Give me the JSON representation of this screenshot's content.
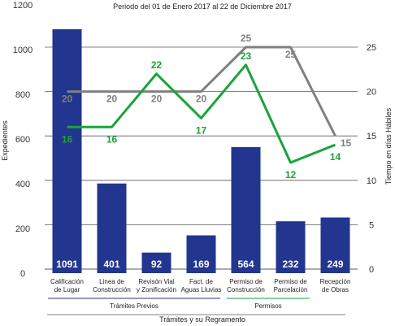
{
  "chart_data": {
    "type": "bar",
    "title": "Periodo del 01 de Enero 2017 al 22 de Diciembre 2017",
    "xlabel": "Trámites y su Regramento",
    "ylabel": "Expedientes",
    "y2label": "Tiempo en días Hábiles",
    "ylim": [
      0,
      1200
    ],
    "y2lim": [
      0,
      27.5
    ],
    "yticks": [
      0,
      200,
      400,
      600,
      800,
      1000,
      1200
    ],
    "y2ticks": [
      0,
      5,
      10,
      15,
      20,
      25
    ],
    "grid": true,
    "categories": [
      [
        "Calificación",
        "de Lugar"
      ],
      [
        "Linea de",
        "Construcción"
      ],
      [
        "Revisón Vial",
        "y Zonificación"
      ],
      [
        "Fact. de",
        "Aguas Lluvias"
      ],
      [
        "Permiso de",
        "Construcción"
      ],
      [
        "Permiso de",
        "Parcelación"
      ],
      [
        "Recepción",
        "de Obras"
      ]
    ],
    "series": [
      {
        "values": [
          1091,
          401,
          92,
          169,
          564,
          232,
          249
        ],
        "axis": "left",
        "kind": "bar",
        "color": "#22358f"
      },
      {
        "values": [
          20,
          20,
          20,
          20,
          25,
          25,
          15
        ],
        "axis": "right",
        "kind": "line",
        "color": "#808080"
      },
      {
        "values": [
          16,
          16,
          22,
          17,
          23,
          12,
          14
        ],
        "axis": "right",
        "kind": "line",
        "color": "#1aa33a"
      }
    ],
    "groups": [
      {
        "label": "Trámites Previos",
        "from": 0,
        "to": 3,
        "color": "#22358f"
      },
      {
        "label": "Permisos",
        "from": 4,
        "to": 5,
        "color": "#1aa33a"
      }
    ]
  }
}
